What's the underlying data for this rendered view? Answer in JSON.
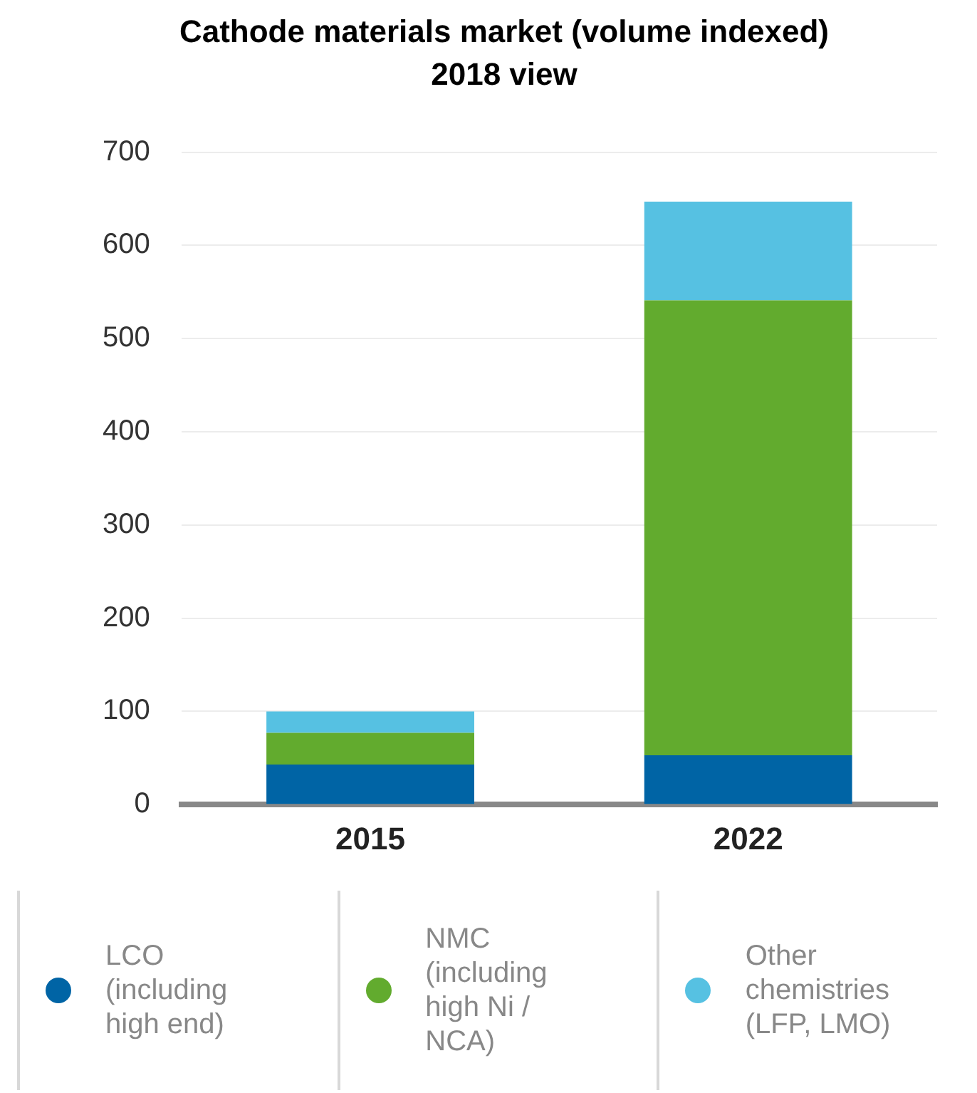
{
  "chart_data": {
    "type": "bar",
    "title": "Cathode materials market (volume indexed)",
    "subtitle": "2018 view",
    "categories": [
      "2015",
      "2022"
    ],
    "stacked": true,
    "series": [
      {
        "name": "LCO (including high end)",
        "color": "#0064a5",
        "values": [
          43,
          53
        ]
      },
      {
        "name": "NMC (including high Ni / NCA)",
        "color": "#62ab2e",
        "values": [
          34,
          488
        ]
      },
      {
        "name": "Other chemistries (LFP, LMO)",
        "color": "#56c1e2",
        "values": [
          23,
          106
        ]
      }
    ],
    "ylim": [
      0,
      700
    ],
    "yticks": [
      0,
      100,
      200,
      300,
      400,
      500,
      600,
      700
    ],
    "grid": "y",
    "legend": "bottom"
  }
}
